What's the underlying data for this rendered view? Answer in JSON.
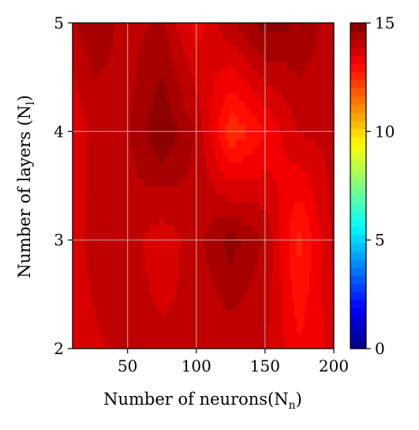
{
  "chart_data": {
    "type": "heatmap",
    "subtype": "filled-contour",
    "title": "",
    "xlabel": {
      "text": "Number of neurons(N",
      "sub": "n",
      "close": ")"
    },
    "ylabel": {
      "text": "Number of layers (N",
      "sub": "l",
      "close": ")"
    },
    "x": [
      10,
      25,
      50,
      75,
      100,
      125,
      150,
      175,
      200
    ],
    "y": [
      2,
      3,
      4,
      5
    ],
    "z": [
      [
        13.6,
        13.8,
        14.0,
        14.0,
        13.9,
        14.0,
        13.9,
        13.2,
        13.6
      ],
      [
        13.7,
        14.0,
        14.1,
        13.6,
        14.1,
        14.8,
        14.2,
        12.6,
        14.0
      ],
      [
        13.5,
        14.0,
        14.2,
        15.0,
        14.2,
        12.4,
        13.1,
        13.9,
        14.0
      ],
      [
        14.2,
        14.5,
        14.1,
        14.3,
        13.3,
        14.2,
        14.8,
        14.6,
        14.0
      ]
    ],
    "xlim": [
      10,
      200
    ],
    "ylim": [
      2,
      5
    ],
    "xticks": [
      "50",
      "100",
      "150",
      "200"
    ],
    "yticks": [
      "2",
      "3",
      "4",
      "5"
    ],
    "colorbar": {
      "range": [
        0,
        15
      ],
      "ticks": [
        "0",
        "5",
        "10",
        "15"
      ],
      "colormap": "jet"
    },
    "grid": true
  }
}
